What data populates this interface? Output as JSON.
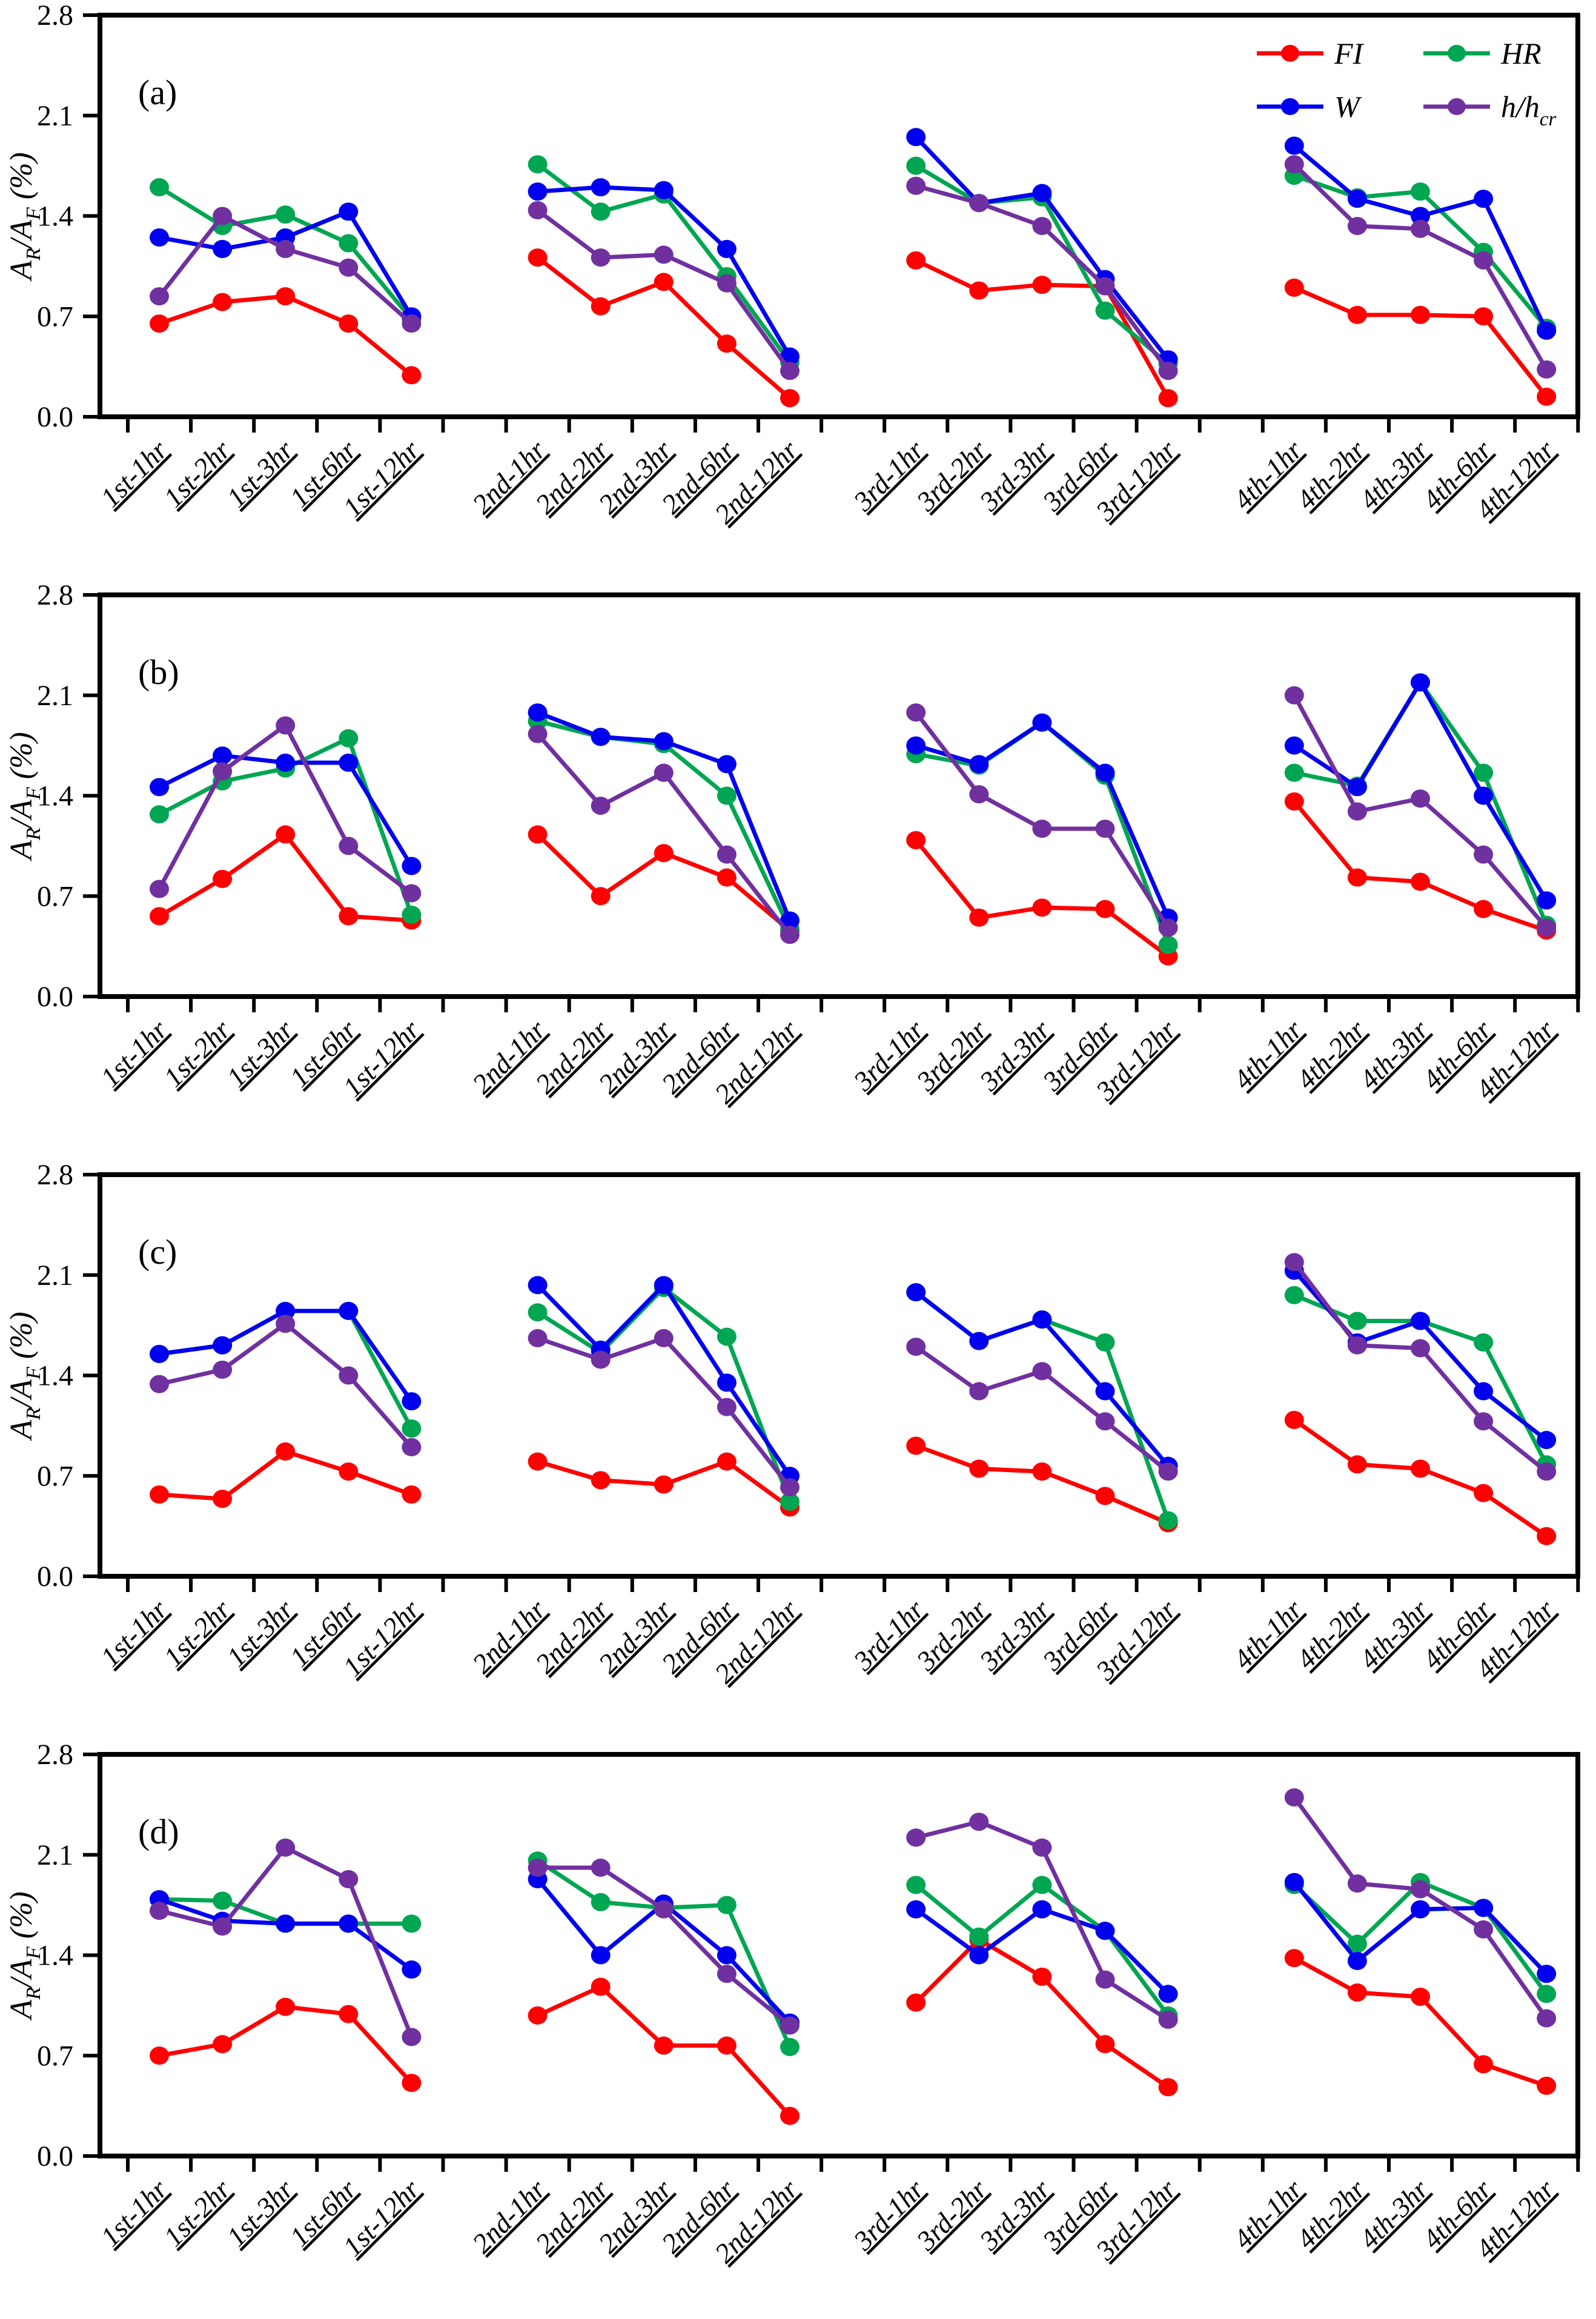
{
  "figure": {
    "background": "#ffffff",
    "axis_color": "#000000",
    "series_colors": {
      "FI": "#ff0000",
      "W": "#0000ee",
      "HR": "#00a651",
      "h/hcr": "#7030a0"
    }
  },
  "chart_data": [
    {
      "type": "line",
      "panel_id": "a",
      "panel_label": "(a)",
      "ylabel_runs": [
        {
          "text": "A",
          "style": "italic"
        },
        {
          "text": "R",
          "style": "sub"
        },
        {
          "text": "/A",
          "style": "italic"
        },
        {
          "text": "F",
          "style": "sub"
        },
        {
          "text": " (%)",
          "style": "italic"
        }
      ],
      "ylim": [
        0,
        2.8
      ],
      "yticks": [
        "0.0",
        "0.7",
        "1.4",
        "2.1",
        "2.8"
      ],
      "grid": false,
      "legend_position": "top-right-inside",
      "legend_rows": [
        [
          "FI",
          "HR"
        ],
        [
          "W",
          "h/hcr"
        ]
      ],
      "categories": [
        "1st-1hr",
        "1st-2hr",
        "1st-3hr",
        "1st-6hr",
        "1st-12hr",
        "2nd-1hr",
        "2nd-2hr",
        "2nd-3hr",
        "2nd-6hr",
        "2nd-12hr",
        "3rd-1hr",
        "3rd-2hr",
        "3rd-3hr",
        "3rd-6hr",
        "3rd-12hr",
        "4th-1hr",
        "4th-2hr",
        "4th-3hr",
        "4th-6hr",
        "4th-12hr"
      ],
      "series": [
        {
          "name": "FI",
          "label_runs": [
            {
              "text": "FI",
              "style": "italic"
            }
          ],
          "color": "#ff0000",
          "values": [
            0.65,
            0.8,
            0.84,
            0.65,
            0.29,
            1.11,
            0.77,
            0.94,
            0.51,
            0.13,
            1.09,
            0.88,
            0.92,
            0.91,
            0.13,
            0.9,
            0.71,
            0.71,
            0.7,
            0.14
          ]
        },
        {
          "name": "W",
          "label_runs": [
            {
              "text": "W",
              "style": "italic"
            }
          ],
          "color": "#0000ee",
          "values": [
            1.25,
            1.17,
            1.25,
            1.43,
            0.7,
            1.57,
            1.6,
            1.58,
            1.17,
            0.42,
            1.95,
            1.49,
            1.56,
            0.96,
            0.4,
            1.89,
            1.52,
            1.4,
            1.52,
            0.6
          ]
        },
        {
          "name": "HR",
          "label_runs": [
            {
              "text": "HR",
              "style": "italic"
            }
          ],
          "color": "#00a651",
          "values": [
            1.6,
            1.33,
            1.41,
            1.21,
            0.68,
            1.76,
            1.43,
            1.55,
            0.98,
            0.38,
            1.75,
            1.49,
            1.53,
            0.74,
            0.37,
            1.68,
            1.53,
            1.57,
            1.15,
            0.62
          ]
        },
        {
          "name": "h/hcr",
          "label_runs": [
            {
              "text": "h/h",
              "style": "italic"
            },
            {
              "text": "cr",
              "style": "sub"
            }
          ],
          "color": "#7030a0",
          "values": [
            0.84,
            1.4,
            1.17,
            1.04,
            0.65,
            1.44,
            1.11,
            1.13,
            0.93,
            0.32,
            1.61,
            1.49,
            1.33,
            0.91,
            0.32,
            1.76,
            1.33,
            1.31,
            1.09,
            0.33
          ]
        }
      ]
    },
    {
      "type": "line",
      "panel_id": "b",
      "panel_label": "(b)",
      "ylabel_runs": [
        {
          "text": "A",
          "style": "italic"
        },
        {
          "text": "R",
          "style": "sub"
        },
        {
          "text": "/A",
          "style": "italic"
        },
        {
          "text": "F",
          "style": "sub"
        },
        {
          "text": " (%)",
          "style": "italic"
        }
      ],
      "ylim": [
        0,
        2.8
      ],
      "yticks": [
        "0.0",
        "0.7",
        "1.4",
        "2.1",
        "2.8"
      ],
      "grid": false,
      "categories": [
        "1st-1hr",
        "1st-2hr",
        "1st-3hr",
        "1st-6hr",
        "1st-12hr",
        "2nd-1hr",
        "2nd-2hr",
        "2nd-3hr",
        "2nd-6hr",
        "2nd-12hr",
        "3rd-1hr",
        "3rd-2hr",
        "3rd-3hr",
        "3rd-6hr",
        "3rd-12hr",
        "4th-1hr",
        "4th-2hr",
        "4th-3hr",
        "4th-6hr",
        "4th-12hr"
      ],
      "series": [
        {
          "name": "FI",
          "label_runs": [
            {
              "text": "FI",
              "style": "italic"
            }
          ],
          "color": "#ff0000",
          "values": [
            0.56,
            0.82,
            1.13,
            0.56,
            0.53,
            1.13,
            0.7,
            1.0,
            0.83,
            0.46,
            1.09,
            0.55,
            0.62,
            0.61,
            0.28,
            1.36,
            0.83,
            0.8,
            0.61,
            0.46
          ]
        },
        {
          "name": "W",
          "label_runs": [
            {
              "text": "W",
              "style": "italic"
            }
          ],
          "color": "#0000ee",
          "values": [
            1.46,
            1.68,
            1.63,
            1.63,
            0.91,
            1.98,
            1.81,
            1.78,
            1.62,
            0.53,
            1.75,
            1.62,
            1.91,
            1.56,
            0.55,
            1.75,
            1.46,
            2.19,
            1.4,
            0.67
          ]
        },
        {
          "name": "HR",
          "label_runs": [
            {
              "text": "HR",
              "style": "italic"
            }
          ],
          "color": "#00a651",
          "values": [
            1.27,
            1.5,
            1.59,
            1.8,
            0.57,
            1.92,
            1.81,
            1.76,
            1.4,
            0.47,
            1.69,
            1.61,
            1.91,
            1.54,
            0.36,
            1.56,
            1.47,
            2.19,
            1.56,
            0.5
          ]
        },
        {
          "name": "h/hcr",
          "label_runs": [
            {
              "text": "h/h",
              "style": "italic"
            },
            {
              "text": "cr",
              "style": "sub"
            }
          ],
          "color": "#7030a0",
          "values": [
            0.75,
            1.57,
            1.89,
            1.05,
            0.72,
            1.83,
            1.33,
            1.56,
            0.99,
            0.43,
            1.98,
            1.41,
            1.17,
            1.17,
            0.48,
            2.1,
            1.29,
            1.38,
            0.99,
            0.48
          ]
        }
      ]
    },
    {
      "type": "line",
      "panel_id": "c",
      "panel_label": "(c)",
      "ylabel_runs": [
        {
          "text": "A",
          "style": "italic"
        },
        {
          "text": "R",
          "style": "sub"
        },
        {
          "text": "/A",
          "style": "italic"
        },
        {
          "text": "F",
          "style": "sub"
        },
        {
          "text": " (%)",
          "style": "italic"
        }
      ],
      "ylim": [
        0,
        2.8
      ],
      "yticks": [
        "0.0",
        "0.7",
        "1.4",
        "2.1",
        "2.8"
      ],
      "grid": false,
      "categories": [
        "1st-1hr",
        "1st-2hr",
        "1st-3hr",
        "1st-6hr",
        "1st-12hr",
        "2nd-1hr",
        "2nd-2hr",
        "2nd-3hr",
        "2nd-6hr",
        "2nd-12hr",
        "3rd-1hr",
        "3rd-2hr",
        "3rd-3hr",
        "3rd-6hr",
        "3rd-12hr",
        "4th-1hr",
        "4th-2hr",
        "4th-3hr",
        "4th-6hr",
        "4th-12hr"
      ],
      "series": [
        {
          "name": "FI",
          "label_runs": [
            {
              "text": "FI",
              "style": "italic"
            }
          ],
          "color": "#ff0000",
          "values": [
            0.57,
            0.54,
            0.87,
            0.73,
            0.57,
            0.8,
            0.67,
            0.64,
            0.8,
            0.48,
            0.91,
            0.75,
            0.73,
            0.56,
            0.37,
            1.09,
            0.78,
            0.75,
            0.58,
            0.28
          ]
        },
        {
          "name": "W",
          "label_runs": [
            {
              "text": "W",
              "style": "italic"
            }
          ],
          "color": "#0000ee",
          "values": [
            1.55,
            1.61,
            1.85,
            1.85,
            1.22,
            2.03,
            1.58,
            2.03,
            1.35,
            0.7,
            1.98,
            1.64,
            1.79,
            1.29,
            0.77,
            2.13,
            1.63,
            1.78,
            1.29,
            0.95
          ]
        },
        {
          "name": "HR",
          "label_runs": [
            {
              "text": "HR",
              "style": "italic"
            }
          ],
          "color": "#00a651",
          "values": [
            1.55,
            1.61,
            1.85,
            1.85,
            1.03,
            1.84,
            1.56,
            2.01,
            1.67,
            0.52,
            1.98,
            1.64,
            1.79,
            1.63,
            0.39,
            1.96,
            1.78,
            1.78,
            1.63,
            0.78
          ]
        },
        {
          "name": "h/hcr",
          "label_runs": [
            {
              "text": "h/h",
              "style": "italic"
            },
            {
              "text": "cr",
              "style": "sub"
            }
          ],
          "color": "#7030a0",
          "values": [
            1.34,
            1.44,
            1.76,
            1.4,
            0.9,
            1.66,
            1.51,
            1.66,
            1.18,
            0.62,
            1.6,
            1.29,
            1.43,
            1.08,
            0.73,
            2.19,
            1.61,
            1.59,
            1.08,
            0.73
          ]
        }
      ]
    },
    {
      "type": "line",
      "panel_id": "d",
      "panel_label": "(d)",
      "ylabel_runs": [
        {
          "text": "A",
          "style": "italic"
        },
        {
          "text": "R",
          "style": "sub"
        },
        {
          "text": "/A",
          "style": "italic"
        },
        {
          "text": "F",
          "style": "sub"
        },
        {
          "text": " (%)",
          "style": "italic"
        }
      ],
      "ylim": [
        0,
        2.8
      ],
      "yticks": [
        "0.0",
        "0.7",
        "1.4",
        "2.1",
        "2.8"
      ],
      "grid": false,
      "categories": [
        "1st-1hr",
        "1st-2hr",
        "1st-3hr",
        "1st-6hr",
        "1st-12hr",
        "2nd-1hr",
        "2nd-2hr",
        "2nd-3hr",
        "2nd-6hr",
        "2nd-12hr",
        "3rd-1hr",
        "3rd-2hr",
        "3rd-3hr",
        "3rd-6hr",
        "3rd-12hr",
        "4th-1hr",
        "4th-2hr",
        "4th-3hr",
        "4th-6hr",
        "4th-12hr"
      ],
      "series": [
        {
          "name": "FI",
          "label_runs": [
            {
              "text": "FI",
              "style": "italic"
            }
          ],
          "color": "#ff0000",
          "values": [
            0.7,
            0.78,
            1.04,
            0.99,
            0.51,
            0.98,
            1.18,
            0.77,
            0.77,
            0.28,
            1.07,
            1.51,
            1.25,
            0.78,
            0.48,
            1.38,
            1.14,
            1.11,
            0.64,
            0.49
          ]
        },
        {
          "name": "W",
          "label_runs": [
            {
              "text": "W",
              "style": "italic"
            }
          ],
          "color": "#0000ee",
          "values": [
            1.79,
            1.64,
            1.62,
            1.62,
            1.3,
            1.93,
            1.4,
            1.76,
            1.4,
            0.93,
            1.72,
            1.4,
            1.72,
            1.57,
            1.13,
            1.91,
            1.36,
            1.72,
            1.73,
            1.27
          ]
        },
        {
          "name": "HR",
          "label_runs": [
            {
              "text": "HR",
              "style": "italic"
            }
          ],
          "color": "#00a651",
          "values": [
            1.79,
            1.78,
            1.62,
            1.62,
            1.62,
            2.06,
            1.77,
            1.73,
            1.75,
            0.76,
            1.89,
            1.53,
            1.89,
            1.57,
            0.98,
            1.89,
            1.48,
            1.91,
            1.73,
            1.13
          ]
        },
        {
          "name": "h/hcr",
          "label_runs": [
            {
              "text": "h/h",
              "style": "italic"
            },
            {
              "text": "cr",
              "style": "sub"
            }
          ],
          "color": "#7030a0",
          "values": [
            1.71,
            1.6,
            2.15,
            1.93,
            0.83,
            2.01,
            2.01,
            1.72,
            1.27,
            0.91,
            2.22,
            2.33,
            2.15,
            1.23,
            0.95,
            2.5,
            1.9,
            1.86,
            1.58,
            0.96
          ]
        }
      ]
    }
  ]
}
